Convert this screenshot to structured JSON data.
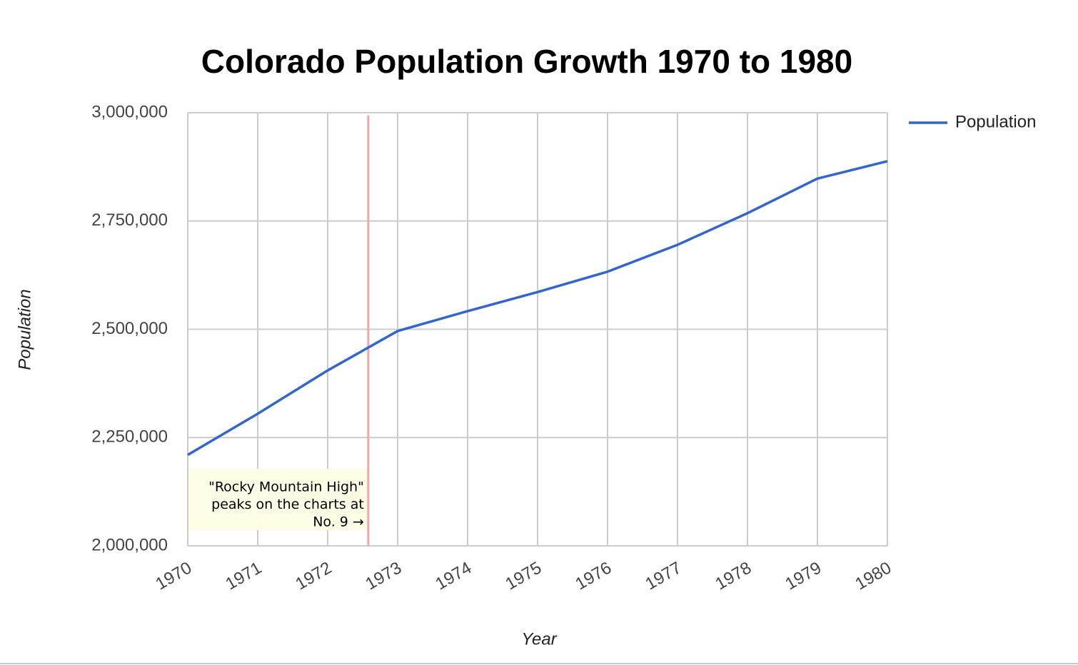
{
  "chart_data": {
    "type": "line",
    "title": "Colorado Population Growth 1970 to 1980",
    "x_label": "Year",
    "y_label": "Population",
    "x": [
      1970,
      1971,
      1972,
      1973,
      1974,
      1975,
      1976,
      1977,
      1978,
      1979,
      1980
    ],
    "series": [
      {
        "name": "Population",
        "color": "#3366cc",
        "values": [
          2210000,
          2305000,
          2405000,
          2496000,
          2542000,
          2586000,
          2633000,
          2695000,
          2768000,
          2848000,
          2888000
        ]
      }
    ],
    "xlim": [
      1970,
      1980
    ],
    "xticks": [
      1970,
      1971,
      1972,
      1973,
      1974,
      1975,
      1976,
      1977,
      1978,
      1979,
      1980
    ],
    "ylim": [
      2000000,
      3000000
    ],
    "yticks": [
      {
        "value": 2000000,
        "label": "2,000,000"
      },
      {
        "value": 2250000,
        "label": "2,250,000"
      },
      {
        "value": 2500000,
        "label": "2,500,000"
      },
      {
        "value": 2750000,
        "label": "2,750,000"
      },
      {
        "value": 3000000,
        "label": "3,000,000"
      }
    ],
    "grid": true,
    "legend": "right",
    "annotation": {
      "x": 1972.58,
      "color": "#f4a6a6",
      "lines": [
        "\"Rocky Mountain High\"",
        "peaks on the charts at",
        "No. 9 →"
      ]
    }
  }
}
